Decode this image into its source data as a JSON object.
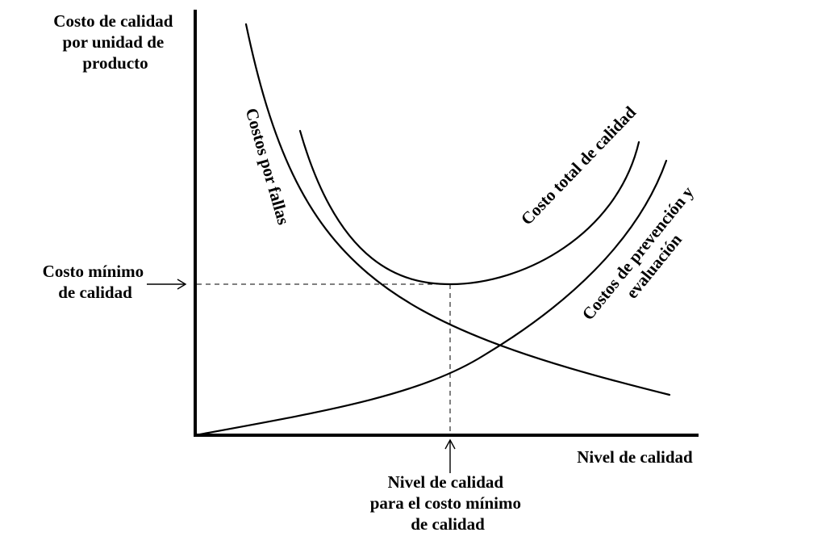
{
  "y_axis_label": {
    "lines": [
      "Costo de calidad",
      "por unidad de",
      "producto"
    ]
  },
  "x_axis_label": "Nivel de calidad",
  "min_cost_label": {
    "lines": [
      "Costo mínimo",
      "de calidad"
    ]
  },
  "optimal_level_label": {
    "lines": [
      "Nivel de calidad",
      "para el costo mínimo",
      "de calidad"
    ]
  },
  "curves": {
    "failure": {
      "label": "Costos por fallas"
    },
    "total": {
      "label": "Costo total de calidad"
    },
    "prevention": {
      "label_lines": [
        "Costos de prevención y",
        "evaluación"
      ]
    }
  },
  "colors": {
    "ink": "#000000",
    "background": "#ffffff"
  }
}
